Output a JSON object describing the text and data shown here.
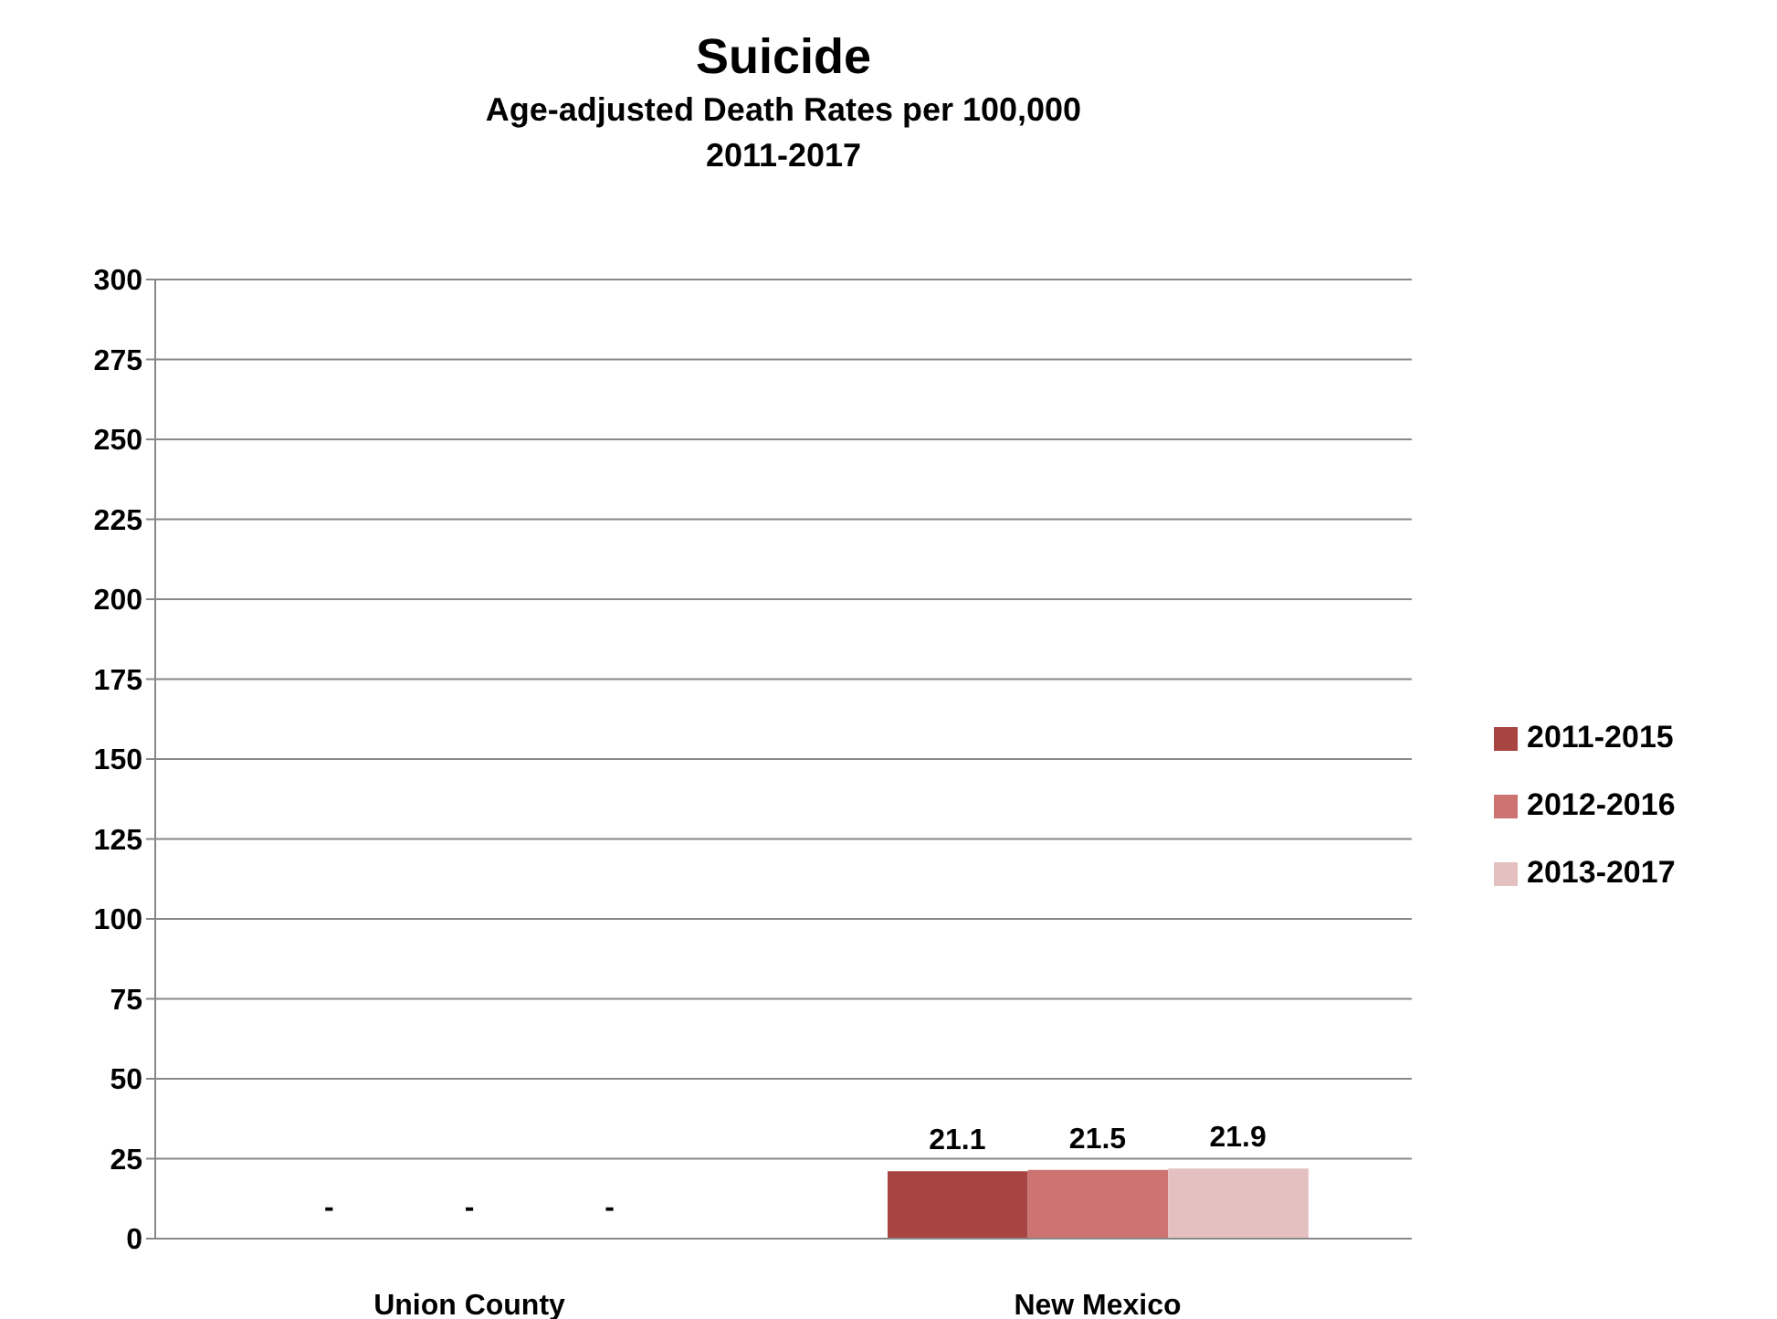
{
  "chart_data": {
    "type": "bar",
    "title": "Suicide",
    "subtitle": "Age-adjusted Death Rates per 100,000\n2011-2017",
    "categories": [
      "Union County",
      "New Mexico"
    ],
    "series": [
      {
        "name": "2011-2015",
        "color": "#a84442",
        "values": [
          null,
          21.1
        ],
        "value_labels": [
          "-",
          "21.1"
        ]
      },
      {
        "name": "2012-2016",
        "color": "#cd7371",
        "values": [
          null,
          21.5
        ],
        "value_labels": [
          "-",
          "21.5"
        ]
      },
      {
        "name": "2013-2017",
        "color": "#e5c0c0",
        "values": [
          null,
          21.9
        ],
        "value_labels": [
          "-",
          "21.9"
        ]
      }
    ],
    "ylim": [
      0,
      300
    ],
    "yticks": [
      0,
      25,
      50,
      75,
      100,
      125,
      150,
      175,
      200,
      225,
      250,
      275,
      300
    ],
    "grid": "y",
    "legend": "right"
  }
}
